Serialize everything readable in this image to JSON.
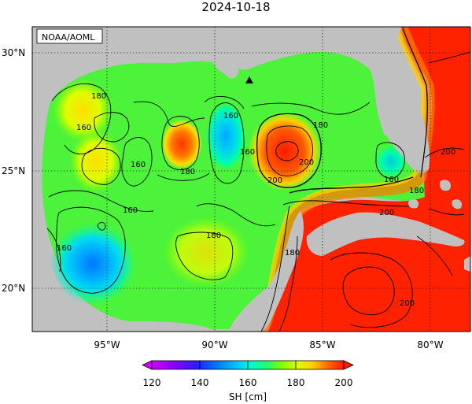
{
  "title": "2024-10-18",
  "credit": "NOAA/AOML",
  "y_ticks": [
    "30°N",
    "25°N",
    "20°N"
  ],
  "x_ticks": [
    "95°W",
    "90°W",
    "85°W",
    "80°W"
  ],
  "colorbar": {
    "ticks": [
      "120",
      "140",
      "160",
      "180",
      "200"
    ],
    "label": "SH [cm]",
    "colors": [
      "#cc00ff",
      "#8800ff",
      "#2222ff",
      "#0088ff",
      "#00ccff",
      "#00ffcc",
      "#22ff66",
      "#88ff00",
      "#ddff00",
      "#ffcc00",
      "#ff6600",
      "#ff1a00"
    ]
  },
  "contour_labels": [
    "180",
    "180",
    "180",
    "160",
    "160",
    "160",
    "160",
    "200",
    "180",
    "180",
    "200",
    "200",
    "160",
    "160",
    "160",
    "200",
    "180",
    "200"
  ],
  "colors": {
    "land": "#c0c0c0",
    "marker": "#000000"
  }
}
